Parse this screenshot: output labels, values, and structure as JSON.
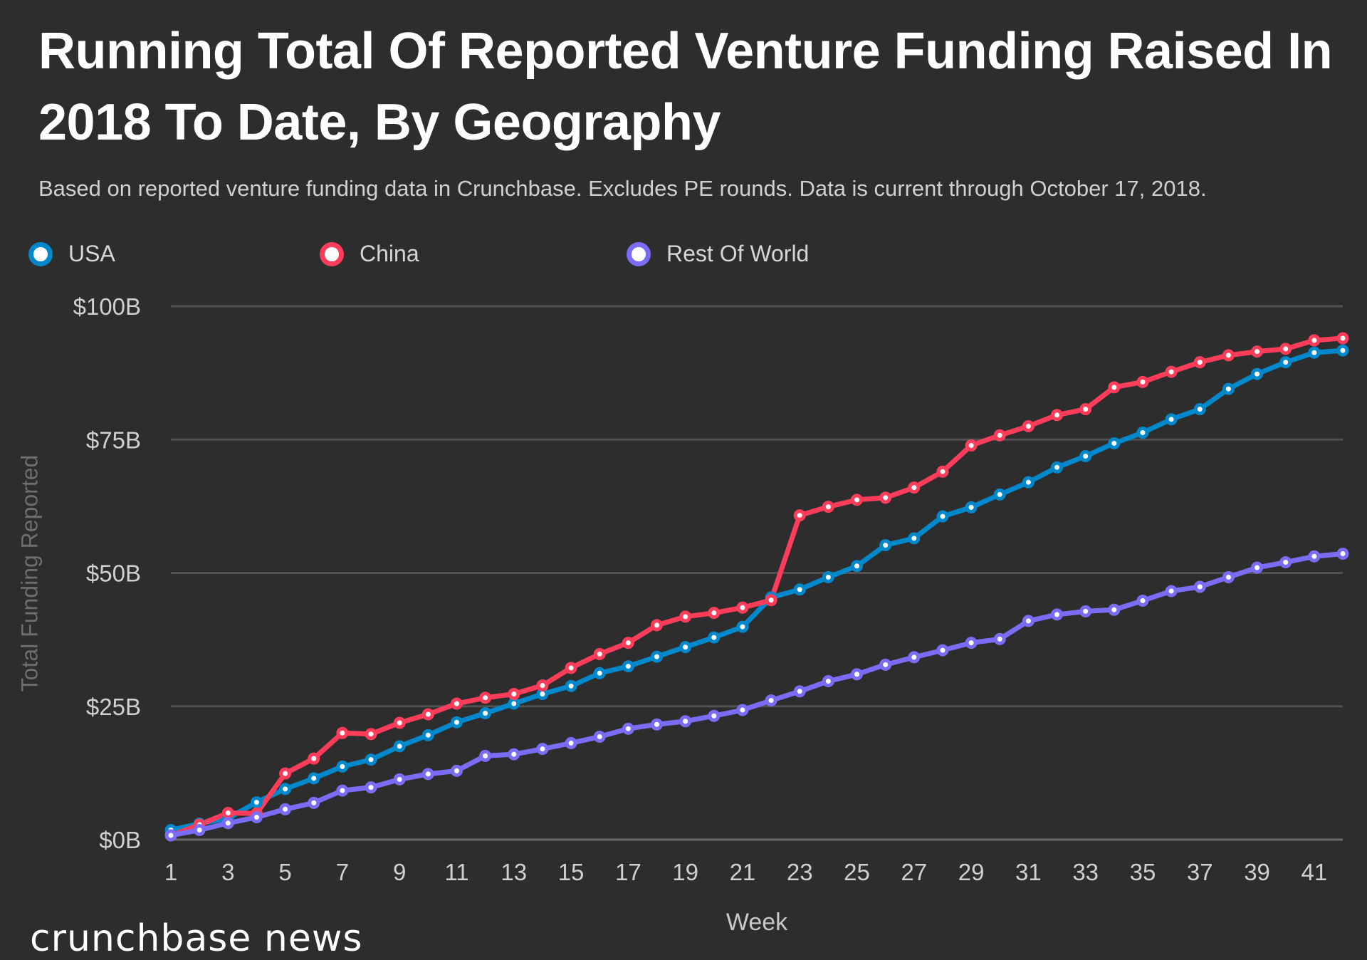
{
  "chart_data": {
    "type": "line",
    "title": "Running Total Of Reported Venture Funding Raised In 2018 To Date, By Geography",
    "subtitle": "Based on reported venture funding data in Crunchbase. Excludes PE rounds.  Data is current through October 17, 2018.",
    "xlabel": "Week",
    "ylabel": "Total Funding Reported",
    "ylim": [
      0,
      100
    ],
    "xlim": [
      1,
      42
    ],
    "grid": true,
    "legend_position": "top-left",
    "y_ticks": [
      {
        "value": 0,
        "label": "$0B"
      },
      {
        "value": 25,
        "label": "$25B"
      },
      {
        "value": 50,
        "label": "$50B"
      },
      {
        "value": 75,
        "label": "$75B"
      },
      {
        "value": 100,
        "label": "$100B"
      }
    ],
    "x_ticks": [
      1,
      3,
      5,
      7,
      9,
      11,
      13,
      15,
      17,
      19,
      21,
      23,
      25,
      27,
      29,
      31,
      33,
      35,
      37,
      39,
      41
    ],
    "x": [
      1,
      2,
      3,
      4,
      5,
      6,
      7,
      8,
      9,
      10,
      11,
      12,
      13,
      14,
      15,
      16,
      17,
      18,
      19,
      20,
      21,
      22,
      23,
      24,
      25,
      26,
      27,
      28,
      29,
      30,
      31,
      32,
      33,
      34,
      35,
      36,
      37,
      38,
      39,
      40,
      41,
      42
    ],
    "series": [
      {
        "name": "USA",
        "color": "#0088cc",
        "values": [
          1.8,
          3,
          4,
          7,
          9.5,
          11.5,
          13.7,
          15,
          17.5,
          19.6,
          22,
          23.7,
          25.5,
          27.3,
          28.8,
          31.2,
          32.5,
          34.3,
          36.1,
          37.9,
          39.9,
          45.4,
          46.9,
          49.2,
          51.3,
          55.2,
          56.5,
          60.6,
          62.3,
          64.7,
          67,
          69.8,
          71.9,
          74.3,
          76.3,
          78.8,
          80.7,
          84.5,
          87.3,
          89.5,
          91.3,
          91.7
        ]
      },
      {
        "name": "China",
        "color": "#ff3d5a",
        "values": [
          0.8,
          2.8,
          5,
          4.9,
          12.4,
          15.2,
          20,
          19.8,
          21.9,
          23.5,
          25.5,
          26.6,
          27.3,
          28.9,
          32.2,
          34.8,
          36.9,
          40.2,
          41.8,
          42.5,
          43.5,
          44.9,
          60.8,
          62.4,
          63.7,
          64.1,
          66,
          69,
          73.9,
          75.8,
          77.5,
          79.6,
          80.7,
          84.8,
          85.8,
          87.7,
          89.5,
          90.8,
          91.5,
          92,
          93.6,
          94
        ]
      },
      {
        "name": "Rest Of World",
        "color": "#7b6cf6",
        "values": [
          0.8,
          1.8,
          3.1,
          4.2,
          5.7,
          6.9,
          9.2,
          9.8,
          11.3,
          12.3,
          12.9,
          15.7,
          16,
          17,
          18.1,
          19.3,
          20.8,
          21.6,
          22.2,
          23.2,
          24.3,
          26.1,
          27.8,
          29.7,
          31,
          32.8,
          34.2,
          35.5,
          36.9,
          37.6,
          41,
          42.2,
          42.8,
          43.1,
          44.8,
          46.6,
          47.4,
          49.2,
          51,
          52,
          53.1,
          53.6
        ]
      }
    ]
  },
  "logo_text": "crunchbase news"
}
